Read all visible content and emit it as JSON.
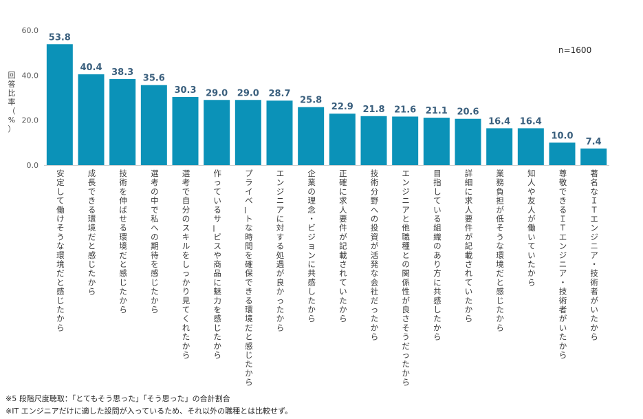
{
  "chart_data": {
    "type": "bar",
    "categories": [
      "安定して働けそうな環境だと感じたから",
      "成長できる環境だと感じたから",
      "技術を伸ばせる環境だと感じたから",
      "選考の中で私への期待を感じたから",
      "選考で自分のスキルをしっかり見てくれたから",
      "作っているサービスや商品に魅力を感じたから",
      "プライベートな時間を確保できる環境だと感じたから",
      "エンジニアに対する処遇が良かったから",
      "企業の理念・ビジョンに共感したから",
      "正確に求人要件が記載されていたから",
      "技術分野への投資が活発な会社だったから",
      "エンジニアと他職種との関係性が良さそうだったから",
      "目指している組織のあり方に共感したから",
      "詳細に求人要件が記載されていたから",
      "業務負担が低そうな環境だと感じたから",
      "知人や友人が働いていたから",
      "尊敬できるＩＴエンジニア・技術者がいたから",
      "著名なＩＴエンジニア・技術者がいたから"
    ],
    "values": [
      53.8,
      40.4,
      38.3,
      35.6,
      30.3,
      29.0,
      29.0,
      28.7,
      25.8,
      22.9,
      21.8,
      21.6,
      21.1,
      20.6,
      16.4,
      16.4,
      10.0,
      7.4
    ],
    "value_labels": [
      "53.8",
      "40.4",
      "38.3",
      "35.6",
      "30.3",
      "29.0",
      "29.0",
      "28.7",
      "25.8",
      "22.9",
      "21.8",
      "21.6",
      "21.1",
      "20.6",
      "16.4",
      "16.4",
      "10.0",
      "7.4"
    ],
    "ylabel": "回答比率（%）",
    "ylim": [
      0,
      60
    ],
    "yticks": [
      "0.0",
      "20.0",
      "40.0",
      "60.0"
    ],
    "yticks_values": [
      0,
      20,
      40,
      60
    ],
    "annotation": "n=1600",
    "bar_color": "#0b92b8",
    "grid": false
  },
  "notes": [
    "※5 段階尺度聴取：「とてもそう思った」「そう思った」の合計割合",
    "※IT エンジニアだけに適した設問が入っているため、それ以外の職種とは比較せず。"
  ]
}
